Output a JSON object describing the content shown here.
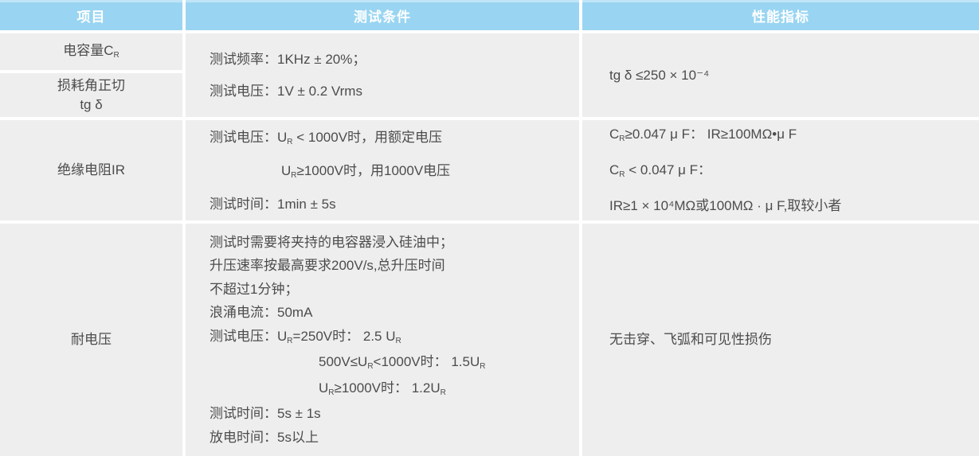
{
  "colors": {
    "header_bg": "#99d5f2",
    "header_text": "#ffffff",
    "cell_bg": "#eeeeef",
    "body_text": "#4c4c4c",
    "divider": "#ffffff"
  },
  "table": {
    "headers": [
      "项目",
      "测试条件",
      "性能指标"
    ],
    "row_capacitance": {
      "item_top": [
        {
          "segs": [
            {
              "t": "电容量C"
            },
            {
              "t": "R",
              "sub": true
            }
          ]
        }
      ],
      "item_bottom": [
        {
          "segs": [
            {
              "t": "损耗角正切"
            }
          ]
        },
        {
          "segs": [
            {
              "t": "tg δ"
            }
          ]
        }
      ],
      "conditions": [
        {
          "segs": [
            {
              "t": "测试频率：1KHz ± 20%；"
            }
          ]
        },
        {
          "segs": [
            {
              "t": "测试电压：1V ± 0.2 Vrms"
            }
          ]
        }
      ],
      "performance": [
        {
          "segs": [
            {
              "t": "tg δ ≤250 × 10⁻⁴"
            }
          ]
        }
      ]
    },
    "row_insulation": {
      "item": [
        {
          "segs": [
            {
              "t": "绝缘电阻IR"
            }
          ]
        }
      ],
      "conditions": [
        {
          "segs": [
            {
              "t": "测试电压：U"
            },
            {
              "t": "R",
              "sub": true
            },
            {
              "t": " < 1000V时，用额定电压"
            }
          ]
        },
        {
          "indent": 90,
          "segs": [
            {
              "t": "U"
            },
            {
              "t": "R",
              "sub": true
            },
            {
              "t": "≥1000V时，用1000V电压"
            }
          ]
        },
        {
          "segs": [
            {
              "t": "测试时间：1min ± 5s"
            }
          ]
        }
      ],
      "performance": [
        {
          "segs": [
            {
              "t": "C"
            },
            {
              "t": "R",
              "sub": true
            },
            {
              "t": "≥0.047 μ F： IR≥100MΩ•μ F"
            }
          ]
        },
        {
          "segs": [
            {
              "t": "C"
            },
            {
              "t": "R",
              "sub": true
            },
            {
              "t": " < 0.047 μ F："
            }
          ]
        },
        {
          "segs": [
            {
              "t": "IR≥1 × 10⁴MΩ或100MΩ · μ F,取较小者"
            }
          ]
        }
      ]
    },
    "row_withstand": {
      "item": [
        {
          "segs": [
            {
              "t": "耐电压"
            }
          ]
        }
      ],
      "conditions": [
        {
          "segs": [
            {
              "t": "测试时需要将夹持的电容器浸入硅油中；"
            }
          ]
        },
        {
          "segs": [
            {
              "t": "升压速率按最高要求200V/s,总升压时间"
            }
          ]
        },
        {
          "segs": [
            {
              "t": "不超过1分钟；"
            }
          ]
        },
        {
          "segs": [
            {
              "t": "浪涌电流：50mA"
            }
          ]
        },
        {
          "segs": [
            {
              "t": "测试电压：U"
            },
            {
              "t": "R",
              "sub": true
            },
            {
              "t": "=250V时： 2.5 U"
            },
            {
              "t": "R",
              "sub": true
            }
          ]
        },
        {
          "indent": 137,
          "segs": [
            {
              "t": "500V≤U"
            },
            {
              "t": "R",
              "sub": true
            },
            {
              "t": "<1000V时： 1.5U"
            },
            {
              "t": "R",
              "sub": true
            }
          ]
        },
        {
          "indent": 137,
          "segs": [
            {
              "t": "U"
            },
            {
              "t": "R",
              "sub": true
            },
            {
              "t": "≥1000V时： 1.2U"
            },
            {
              "t": "R",
              "sub": true
            }
          ]
        },
        {
          "segs": [
            {
              "t": "测试时间：5s ± 1s"
            }
          ]
        },
        {
          "segs": [
            {
              "t": "放电时间：5s以上"
            }
          ]
        }
      ],
      "performance": [
        {
          "segs": [
            {
              "t": "无击穿、飞弧和可见性损伤"
            }
          ]
        }
      ]
    }
  }
}
